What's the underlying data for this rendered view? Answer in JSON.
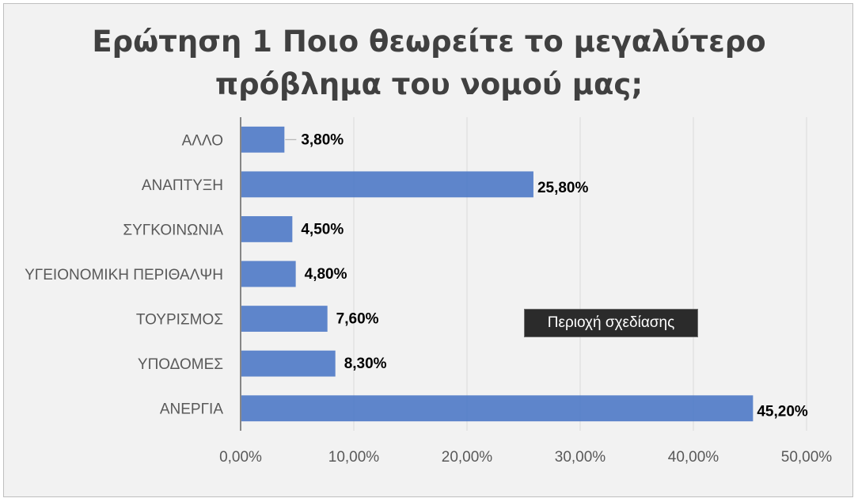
{
  "chart_data": {
    "type": "bar",
    "orientation": "horizontal",
    "title_lines": [
      "Ερώτηση 1 Ποιο θεωρείτε το μεγαλύτερο",
      "πρόβλημα του νομού μας;"
    ],
    "categories": [
      "ΑΛΛΟ",
      "ΑΝΑΠΤΥΞΗ",
      "ΣΥΓΚΟΙΝΩΝΙΑ",
      "ΥΓΕΙΟΝΟΜΙΚΗ ΠΕΡΙΘΑΛΨΗ",
      "ΤΟΥΡΙΣΜΟΣ",
      "ΥΠΟΔΟΜΕΣ",
      "ΑΝΕΡΓΙΑ"
    ],
    "values": [
      3.8,
      25.8,
      4.5,
      4.8,
      7.6,
      8.3,
      45.2
    ],
    "data_labels": [
      "3,80%",
      "25,80%",
      "4,50%",
      "4,80%",
      "7,60%",
      "8,30%",
      "45,20%"
    ],
    "xlim": [
      0,
      50
    ],
    "x_ticks": [
      "0,00%",
      "10,00%",
      "20,00%",
      "30,00%",
      "40,00%",
      "50,00%"
    ],
    "gridlines": true,
    "legend": "none",
    "bar_color": "#4472c4"
  },
  "tooltip": {
    "text": "Περιοχή σχεδίασης"
  }
}
